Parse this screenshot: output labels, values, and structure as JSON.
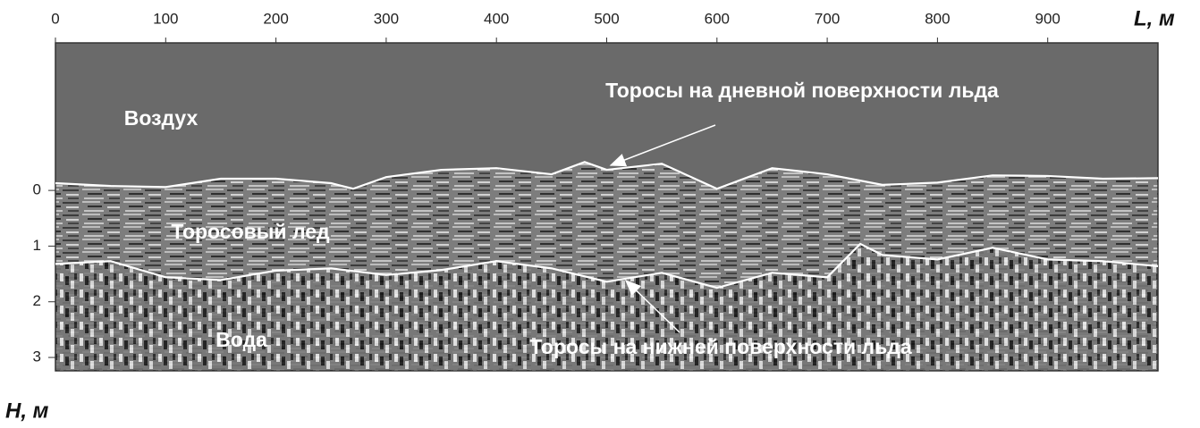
{
  "chart_data": {
    "type": "line",
    "x_label": "L, м",
    "y_label": "H, м",
    "xlim": [
      0,
      1000
    ],
    "xticks": [
      0,
      100,
      200,
      300,
      400,
      500,
      600,
      700,
      800,
      900
    ],
    "ylim": [
      3.24,
      -2.65
    ],
    "yticks": [
      0,
      1,
      2,
      3
    ],
    "regions": [
      "Воздух",
      "Торосовый лед",
      "Вода"
    ],
    "annotations": [
      "Торосы на дневной поверхности льда",
      "Торосы на нижней поверхности льда"
    ],
    "series": [
      {
        "color": "#ffffff",
        "x": [
          0,
          50,
          100,
          150,
          200,
          250,
          270,
          300,
          350,
          400,
          450,
          480,
          500,
          550,
          600,
          650,
          700,
          750,
          800,
          850,
          900,
          950,
          1000
        ],
        "values": [
          -0.13,
          -0.08,
          -0.06,
          -0.21,
          -0.21,
          -0.13,
          -0.03,
          -0.24,
          -0.37,
          -0.4,
          -0.29,
          -0.51,
          -0.37,
          -0.48,
          -0.03,
          -0.4,
          -0.29,
          -0.1,
          -0.14,
          -0.27,
          -0.26,
          -0.21,
          -0.22
        ]
      },
      {
        "color": "#ffffff",
        "x": [
          0,
          50,
          100,
          150,
          200,
          250,
          300,
          350,
          400,
          450,
          500,
          550,
          600,
          650,
          700,
          730,
          750,
          800,
          850,
          900,
          950,
          1000
        ],
        "values": [
          1.32,
          1.27,
          1.56,
          1.61,
          1.44,
          1.4,
          1.52,
          1.43,
          1.27,
          1.4,
          1.64,
          1.48,
          1.75,
          1.48,
          1.56,
          0.96,
          1.16,
          1.24,
          1.03,
          1.24,
          1.27,
          1.36
        ]
      }
    ]
  }
}
